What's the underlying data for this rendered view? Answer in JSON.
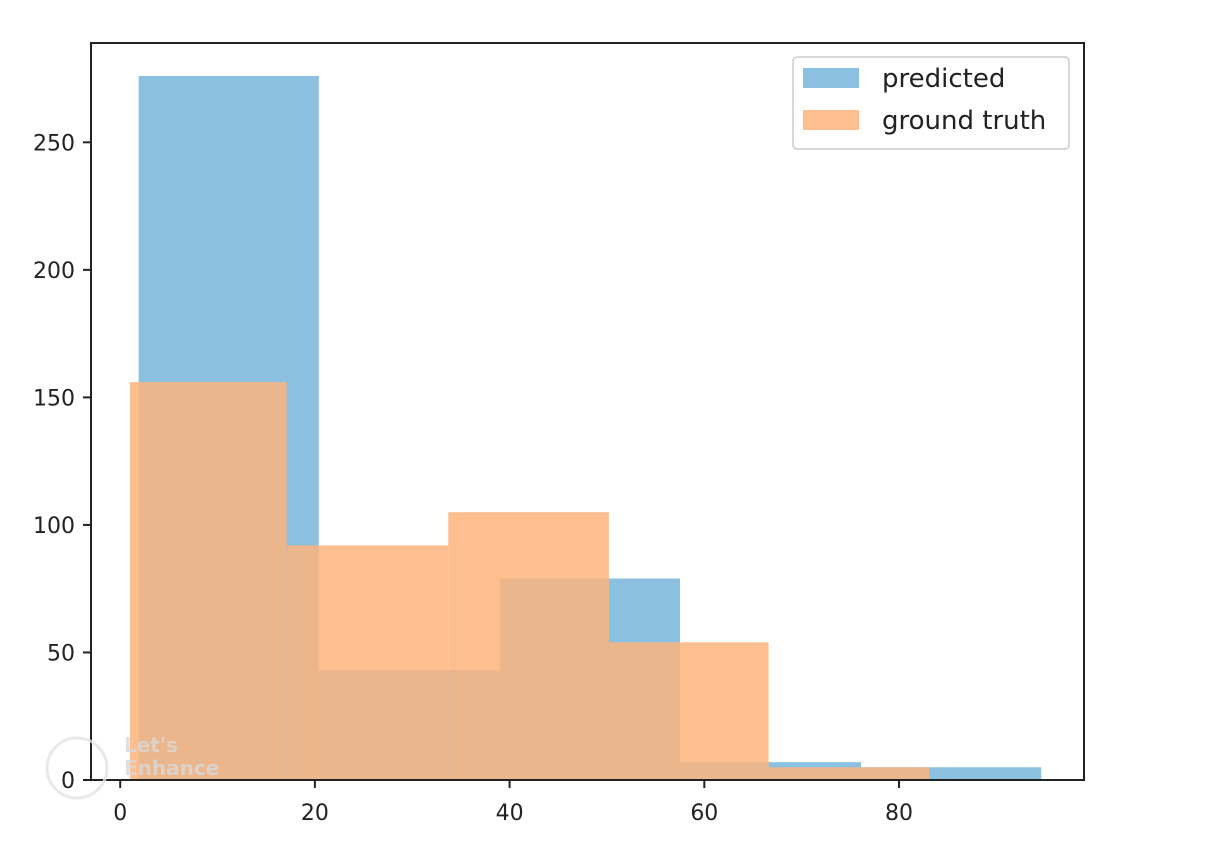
{
  "chart_data": {
    "type": "bar",
    "subtype": "overlaid histogram",
    "title": "",
    "xlabel": "",
    "ylabel": "",
    "xlim": [
      -3,
      99
    ],
    "ylim": [
      0,
      276
    ],
    "x_ticks": [
      0,
      20,
      40,
      60,
      80
    ],
    "y_ticks": [
      0,
      50,
      100,
      150,
      200,
      250
    ],
    "x_tick_labels": [
      "0",
      "20",
      "40",
      "60",
      "80"
    ],
    "y_tick_labels": [
      "0",
      "50",
      "100",
      "150",
      "200",
      "250"
    ],
    "grid": false,
    "legend_position": "top-right",
    "bar_opacity": 0.85,
    "series": [
      {
        "name": "predicted",
        "color": "#77b5db",
        "bins": [
          {
            "x0": 1.9,
            "x1": 20.4,
            "value": 276
          },
          {
            "x0": 20.4,
            "x1": 39.0,
            "value": 43
          },
          {
            "x0": 39.0,
            "x1": 57.5,
            "value": 79
          },
          {
            "x0": 57.5,
            "x1": 76.1,
            "value": 7
          },
          {
            "x0": 76.1,
            "x1": 94.6,
            "value": 5
          }
        ]
      },
      {
        "name": "ground truth",
        "color": "#fdb47c",
        "bins": [
          {
            "x0": 1.0,
            "x1": 17.1,
            "value": 156
          },
          {
            "x0": 17.1,
            "x1": 33.7,
            "value": 92
          },
          {
            "x0": 33.7,
            "x1": 50.2,
            "value": 105
          },
          {
            "x0": 50.2,
            "x1": 66.6,
            "value": 54
          },
          {
            "x0": 66.6,
            "x1": 83.1,
            "value": 5
          }
        ]
      }
    ]
  },
  "watermark": {
    "line1": "Let's",
    "line2": "Enhance"
  }
}
